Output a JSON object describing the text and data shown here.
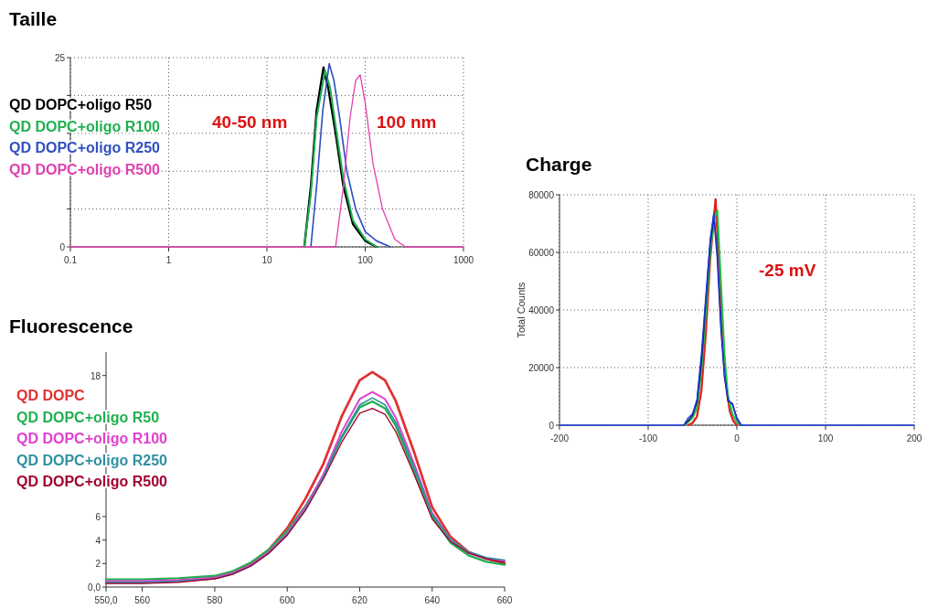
{
  "chart_data": [
    {
      "type": "line",
      "title": "Taille",
      "log": "x",
      "grid": true,
      "legend": "top left",
      "xlim": [
        0.1,
        1000
      ],
      "xticks": [
        0.1,
        1,
        10,
        100,
        1000
      ],
      "ylim": [
        0,
        25
      ],
      "yticks": [
        0,
        {
          "value": 5,
          "label": null
        },
        {
          "value": 10,
          "label": null
        },
        {
          "value": 15,
          "label": null
        },
        {
          "value": 20,
          "label": null
        },
        25
      ],
      "annotations": [
        "40-50 nm",
        "100 nm"
      ],
      "series": [
        {
          "name": "QD DOPC+oligo R50",
          "color": "#000000",
          "x": [
            24,
            28,
            32,
            37.6,
            42,
            50,
            60,
            75,
            100,
            130
          ],
          "values": [
            0,
            8,
            18,
            23.7,
            21,
            15,
            8,
            3,
            0.8,
            0
          ]
        },
        {
          "name": "QD DOPC+oligo R100",
          "color": "#20b050",
          "x": [
            24,
            28,
            32,
            39,
            44,
            50,
            60,
            75,
            100,
            130
          ],
          "values": [
            0,
            7,
            17,
            23.3,
            21,
            16,
            9,
            3.5,
            1,
            0
          ]
        },
        {
          "name": "QD DOPC+oligo R250",
          "color": "#3050c0",
          "x": [
            28,
            32,
            37,
            43,
            48,
            55,
            65,
            80,
            100,
            130,
            180
          ],
          "values": [
            0,
            8,
            18,
            24.2,
            22,
            17,
            10,
            5,
            2,
            0.8,
            0
          ]
        },
        {
          "name": "QD DOPC+oligo R500",
          "color": "#e040b0",
          "x": [
            0.1,
            50,
            60,
            70,
            80,
            89,
            100,
            120,
            150,
            200,
            255,
            1000
          ],
          "values": [
            0,
            0,
            8,
            17,
            22,
            22.7,
            19,
            11,
            5,
            1,
            0,
            0
          ]
        }
      ]
    },
    {
      "type": "line",
      "title": "Fluorescence",
      "legend": "top left",
      "xlim": [
        550,
        660
      ],
      "xticks": [
        {
          "value": 550,
          "label": "550,0"
        },
        560,
        580,
        600,
        620,
        640,
        660
      ],
      "ylim": [
        0,
        20
      ],
      "yticks": [
        {
          "value": 0,
          "label": "0,0"
        },
        2,
        4,
        6,
        18
      ],
      "series": [
        {
          "name": "QD DOPC",
          "color": "#e03030",
          "x": [
            550,
            560,
            570,
            580,
            585,
            590,
            595,
            600,
            605,
            610,
            615,
            620,
            623.5,
            627,
            630,
            635,
            640,
            645,
            650,
            655,
            660
          ],
          "values": [
            0.4,
            0.4,
            0.5,
            0.8,
            1.2,
            2.0,
            3.2,
            5.0,
            7.5,
            10.5,
            14.5,
            17.6,
            18.3,
            17.6,
            15.8,
            11.5,
            6.8,
            4.3,
            3.0,
            2.4,
            2.0
          ]
        },
        {
          "name": "QD DOPC+oligo R50",
          "color": "#20b050",
          "x": [
            550,
            560,
            570,
            580,
            585,
            590,
            595,
            600,
            605,
            610,
            615,
            620,
            623.5,
            627,
            630,
            635,
            640,
            645,
            650,
            655,
            660
          ],
          "values": [
            0.65,
            0.65,
            0.75,
            0.95,
            1.35,
            2.1,
            3.2,
            4.8,
            6.9,
            9.4,
            12.7,
            15.3,
            15.8,
            15.2,
            13.7,
            9.9,
            6.0,
            3.8,
            2.7,
            2.15,
            1.9
          ]
        },
        {
          "name": "QD DOPC+oligo R100",
          "color": "#e040d0",
          "x": [
            550,
            560,
            570,
            580,
            585,
            590,
            595,
            600,
            605,
            610,
            615,
            620,
            623.5,
            627,
            630,
            635,
            640,
            645,
            650,
            655,
            660
          ],
          "values": [
            0.5,
            0.5,
            0.6,
            0.8,
            1.2,
            1.9,
            3.0,
            4.6,
            6.8,
            9.6,
            13.2,
            16.0,
            16.6,
            16.0,
            14.4,
            10.5,
            6.3,
            4.1,
            2.9,
            2.4,
            2.2
          ]
        },
        {
          "name": "QD DOPC+oligo R250",
          "color": "#3090a0",
          "x": [
            550,
            560,
            570,
            580,
            585,
            590,
            595,
            600,
            605,
            610,
            615,
            620,
            623.5,
            627,
            630,
            635,
            640,
            645,
            650,
            655,
            660
          ],
          "values": [
            0.4,
            0.4,
            0.5,
            0.7,
            1.1,
            1.8,
            2.9,
            4.5,
            6.6,
            9.4,
            12.8,
            15.5,
            16.1,
            15.5,
            14.0,
            10.2,
            6.2,
            4.1,
            3.0,
            2.5,
            2.3
          ]
        },
        {
          "name": "QD DOPC+oligo R500",
          "color": "#a00030",
          "x": [
            550,
            560,
            570,
            580,
            585,
            590,
            595,
            600,
            605,
            610,
            615,
            620,
            623.5,
            627,
            630,
            635,
            640,
            645,
            650,
            655,
            660
          ],
          "values": [
            0.3,
            0.3,
            0.4,
            0.7,
            1.1,
            1.8,
            2.9,
            4.4,
            6.5,
            9.2,
            12.3,
            14.8,
            15.2,
            14.7,
            13.2,
            9.6,
            5.8,
            3.9,
            2.9,
            2.4,
            2.1
          ]
        }
      ]
    },
    {
      "type": "line",
      "title": "Charge",
      "ylabel": "Total Counts",
      "grid": true,
      "xlim": [
        -200,
        200
      ],
      "xticks": [
        -200,
        -100,
        0,
        100,
        200
      ],
      "ylim": [
        0,
        80000
      ],
      "yticks": [
        0,
        20000,
        40000,
        60000,
        80000
      ],
      "annotations": [
        "-25 mV"
      ],
      "series": [
        {
          "color": "#e02020",
          "x": [
            -55,
            -50,
            -45,
            -40,
            -35,
            -30,
            -24,
            -20,
            -16,
            -12,
            -8,
            -4,
            0
          ],
          "values": [
            0,
            800,
            3000,
            12000,
            32000,
            58000,
            78400,
            55000,
            30000,
            14000,
            5000,
            1500,
            0
          ]
        },
        {
          "color": "#20c040",
          "x": [
            -60,
            -55,
            -50,
            -45,
            -40,
            -35,
            -30,
            -26,
            -22,
            -18,
            -14,
            -10,
            -5,
            0,
            5
          ],
          "values": [
            0,
            1000,
            2500,
            6000,
            19000,
            38000,
            60000,
            71000,
            74700,
            50000,
            25000,
            10000,
            4000,
            1000,
            0
          ]
        },
        {
          "color": "#101080",
          "x": [
            -60,
            -55,
            -50,
            -45,
            -40,
            -35,
            -30,
            -26,
            -22,
            -18,
            -14,
            -10,
            -5,
            0,
            5
          ],
          "values": [
            0,
            1500,
            3500,
            8000,
            22000,
            43000,
            63000,
            73000,
            58000,
            34000,
            17000,
            8500,
            7500,
            2500,
            0
          ]
        },
        {
          "color": "#2040e0",
          "x": [
            -200,
            -60,
            -55,
            -50,
            -45,
            -40,
            -35,
            -30,
            -26,
            -22,
            -18,
            -14,
            -10,
            -5,
            0,
            5,
            200
          ],
          "values": [
            0,
            0,
            2500,
            4000,
            9000,
            25000,
            45000,
            65000,
            73600,
            60000,
            35000,
            18000,
            9000,
            7000,
            2000,
            0,
            0
          ]
        }
      ]
    }
  ]
}
